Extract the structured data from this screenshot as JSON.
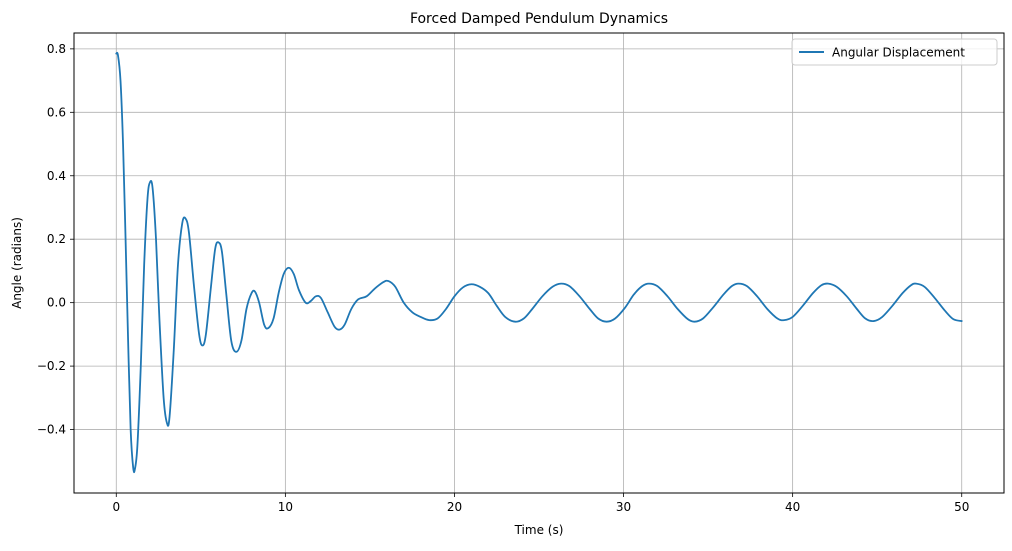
{
  "chart_data": {
    "type": "line",
    "title": "Forced Damped Pendulum Dynamics",
    "xlabel": "Time (s)",
    "ylabel": "Angle (radians)",
    "xlim": [
      -2.5,
      52.5
    ],
    "ylim": [
      -0.6,
      0.85
    ],
    "x_ticks": [
      0,
      10,
      20,
      30,
      40,
      50
    ],
    "x_tick_labels": [
      "0",
      "10",
      "20",
      "30",
      "40",
      "50"
    ],
    "y_ticks": [
      -0.4,
      -0.2,
      0.0,
      0.2,
      0.4,
      0.6,
      0.8
    ],
    "y_tick_labels": [
      "−0.4",
      "−0.2",
      "0.0",
      "0.2",
      "0.4",
      "0.6",
      "0.8"
    ],
    "grid": true,
    "legend_position": "top-right",
    "series": [
      {
        "name": "Angular Displacement",
        "color": "#1f77b4",
        "points": [
          [
            0.0,
            0.785
          ],
          [
            0.1,
            0.78
          ],
          [
            0.25,
            0.7
          ],
          [
            0.4,
            0.5
          ],
          [
            0.55,
            0.2
          ],
          [
            0.7,
            -0.12
          ],
          [
            0.85,
            -0.4
          ],
          [
            1.0,
            -0.52
          ],
          [
            1.1,
            -0.525
          ],
          [
            1.25,
            -0.45
          ],
          [
            1.45,
            -0.2
          ],
          [
            1.65,
            0.12
          ],
          [
            1.85,
            0.33
          ],
          [
            2.0,
            0.38
          ],
          [
            2.15,
            0.36
          ],
          [
            2.35,
            0.2
          ],
          [
            2.55,
            -0.05
          ],
          [
            2.8,
            -0.3
          ],
          [
            3.0,
            -0.38
          ],
          [
            3.15,
            -0.36
          ],
          [
            3.4,
            -0.15
          ],
          [
            3.65,
            0.12
          ],
          [
            3.9,
            0.25
          ],
          [
            4.1,
            0.265
          ],
          [
            4.3,
            0.22
          ],
          [
            4.6,
            0.05
          ],
          [
            4.9,
            -0.1
          ],
          [
            5.1,
            -0.135
          ],
          [
            5.3,
            -0.1
          ],
          [
            5.6,
            0.05
          ],
          [
            5.85,
            0.17
          ],
          [
            6.05,
            0.19
          ],
          [
            6.25,
            0.16
          ],
          [
            6.5,
            0.03
          ],
          [
            6.8,
            -0.12
          ],
          [
            7.1,
            -0.155
          ],
          [
            7.4,
            -0.12
          ],
          [
            7.7,
            -0.02
          ],
          [
            8.0,
            0.03
          ],
          [
            8.2,
            0.035
          ],
          [
            8.45,
            0.0
          ],
          [
            8.75,
            -0.07
          ],
          [
            9.0,
            -0.08
          ],
          [
            9.3,
            -0.05
          ],
          [
            9.6,
            0.03
          ],
          [
            9.9,
            0.09
          ],
          [
            10.2,
            0.11
          ],
          [
            10.5,
            0.09
          ],
          [
            10.8,
            0.04
          ],
          [
            11.2,
            0.0
          ],
          [
            11.5,
            0.005
          ],
          [
            11.8,
            0.02
          ],
          [
            12.1,
            0.015
          ],
          [
            12.5,
            -0.03
          ],
          [
            12.9,
            -0.075
          ],
          [
            13.2,
            -0.085
          ],
          [
            13.5,
            -0.07
          ],
          [
            13.9,
            -0.02
          ],
          [
            14.3,
            0.01
          ],
          [
            14.8,
            0.02
          ],
          [
            15.3,
            0.045
          ],
          [
            15.8,
            0.065
          ],
          [
            16.1,
            0.068
          ],
          [
            16.5,
            0.05
          ],
          [
            17.0,
            0.0
          ],
          [
            17.5,
            -0.03
          ],
          [
            18.0,
            -0.045
          ],
          [
            18.5,
            -0.055
          ],
          [
            19.0,
            -0.05
          ],
          [
            19.5,
            -0.02
          ],
          [
            20.0,
            0.02
          ],
          [
            20.5,
            0.048
          ],
          [
            21.0,
            0.058
          ],
          [
            21.5,
            0.05
          ],
          [
            22.0,
            0.03
          ],
          [
            22.5,
            -0.01
          ],
          [
            23.0,
            -0.045
          ],
          [
            23.6,
            -0.06
          ],
          [
            24.1,
            -0.05
          ],
          [
            24.6,
            -0.02
          ],
          [
            25.2,
            0.02
          ],
          [
            25.8,
            0.05
          ],
          [
            26.3,
            0.06
          ],
          [
            26.8,
            0.052
          ],
          [
            27.4,
            0.02
          ],
          [
            28.0,
            -0.02
          ],
          [
            28.5,
            -0.05
          ],
          [
            29.0,
            -0.06
          ],
          [
            29.5,
            -0.05
          ],
          [
            30.1,
            -0.015
          ],
          [
            30.6,
            0.025
          ],
          [
            31.1,
            0.052
          ],
          [
            31.5,
            0.06
          ],
          [
            32.0,
            0.052
          ],
          [
            32.6,
            0.02
          ],
          [
            33.2,
            -0.02
          ],
          [
            33.8,
            -0.052
          ],
          [
            34.2,
            -0.06
          ],
          [
            34.7,
            -0.05
          ],
          [
            35.3,
            -0.015
          ],
          [
            35.9,
            0.025
          ],
          [
            36.4,
            0.052
          ],
          [
            36.8,
            0.06
          ],
          [
            37.3,
            0.052
          ],
          [
            37.9,
            0.02
          ],
          [
            38.5,
            -0.02
          ],
          [
            39.1,
            -0.05
          ],
          [
            39.5,
            -0.055
          ],
          [
            40.0,
            -0.045
          ],
          [
            40.6,
            -0.01
          ],
          [
            41.2,
            0.03
          ],
          [
            41.7,
            0.055
          ],
          [
            42.1,
            0.06
          ],
          [
            42.6,
            0.05
          ],
          [
            43.2,
            0.02
          ],
          [
            43.8,
            -0.02
          ],
          [
            44.3,
            -0.05
          ],
          [
            44.8,
            -0.058
          ],
          [
            45.3,
            -0.045
          ],
          [
            45.9,
            -0.01
          ],
          [
            46.5,
            0.03
          ],
          [
            47.0,
            0.055
          ],
          [
            47.3,
            0.06
          ],
          [
            47.8,
            0.05
          ],
          [
            48.4,
            0.015
          ],
          [
            49.0,
            -0.025
          ],
          [
            49.5,
            -0.052
          ],
          [
            50.0,
            -0.058
          ]
        ]
      }
    ]
  }
}
